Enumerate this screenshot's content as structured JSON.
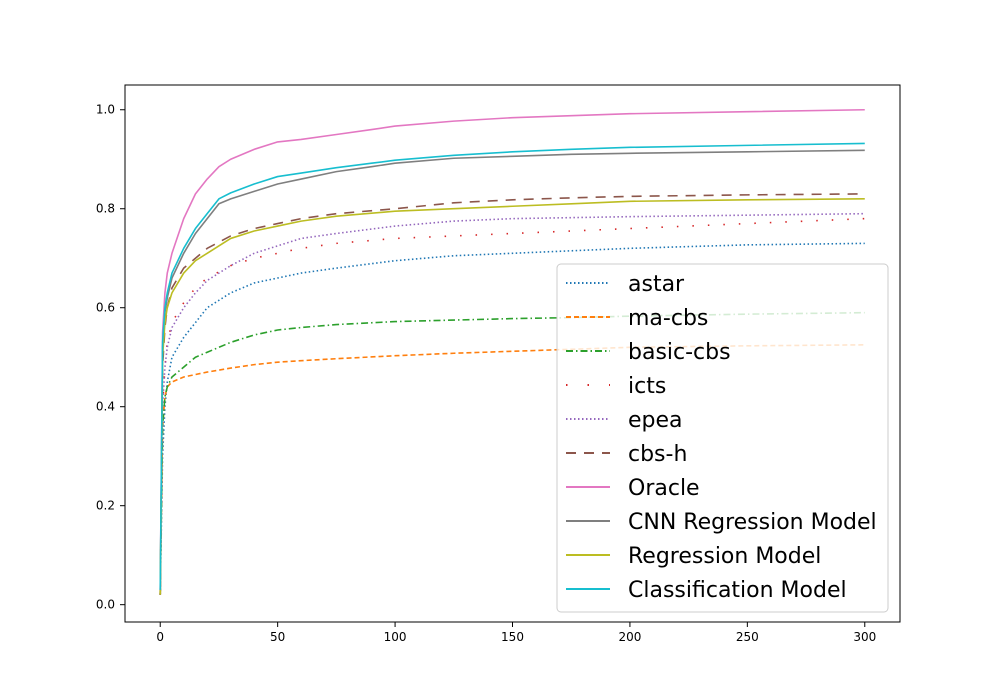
{
  "chart_data": {
    "type": "line",
    "title": "",
    "xlabel": "",
    "ylabel": "",
    "xlim": [
      -15,
      315
    ],
    "ylim": [
      -0.035,
      1.05
    ],
    "x_ticks": [
      0,
      50,
      100,
      150,
      200,
      250,
      300
    ],
    "y_ticks": [
      0.0,
      0.2,
      0.4,
      0.6,
      0.8,
      1.0
    ],
    "x_tick_labels": [
      "0",
      "50",
      "100",
      "150",
      "200",
      "250",
      "300"
    ],
    "y_tick_labels": [
      "0.0",
      "0.2",
      "0.4",
      "0.6",
      "0.8",
      "1.0"
    ],
    "grid": false,
    "legend_position": "lower-right",
    "series": [
      {
        "name": "astar",
        "color": "#1f77b4",
        "style": "dotted",
        "x": [
          0,
          1,
          2,
          3,
          5,
          10,
          15,
          20,
          30,
          40,
          50,
          60,
          75,
          100,
          125,
          150,
          175,
          200,
          250,
          300
        ],
        "y": [
          0.02,
          0.3,
          0.4,
          0.45,
          0.5,
          0.54,
          0.57,
          0.6,
          0.63,
          0.65,
          0.66,
          0.67,
          0.68,
          0.695,
          0.705,
          0.71,
          0.715,
          0.72,
          0.727,
          0.73
        ]
      },
      {
        "name": "ma-cbs",
        "color": "#ff7f0e",
        "style": "dashed",
        "x": [
          0,
          1,
          2,
          3,
          5,
          10,
          15,
          20,
          30,
          40,
          50,
          60,
          75,
          100,
          125,
          150,
          175,
          200,
          250,
          300
        ],
        "y": [
          0.02,
          0.36,
          0.42,
          0.44,
          0.45,
          0.46,
          0.465,
          0.47,
          0.478,
          0.485,
          0.49,
          0.493,
          0.497,
          0.503,
          0.508,
          0.512,
          0.516,
          0.52,
          0.523,
          0.525
        ]
      },
      {
        "name": "basic-cbs",
        "color": "#2ca02c",
        "style": "dashdot",
        "x": [
          0,
          1,
          2,
          3,
          5,
          10,
          15,
          20,
          30,
          40,
          50,
          60,
          75,
          100,
          125,
          150,
          175,
          200,
          250,
          300
        ],
        "y": [
          0.02,
          0.36,
          0.42,
          0.44,
          0.46,
          0.48,
          0.5,
          0.51,
          0.53,
          0.545,
          0.555,
          0.56,
          0.566,
          0.572,
          0.575,
          0.578,
          0.58,
          0.583,
          0.587,
          0.59
        ]
      },
      {
        "name": "icts",
        "color": "#d62728",
        "style": "sparse-dotted",
        "x": [
          0,
          1,
          2,
          3,
          5,
          10,
          15,
          20,
          30,
          40,
          50,
          60,
          75,
          100,
          125,
          150,
          175,
          200,
          250,
          300
        ],
        "y": [
          0.02,
          0.4,
          0.48,
          0.53,
          0.57,
          0.61,
          0.64,
          0.66,
          0.685,
          0.7,
          0.71,
          0.72,
          0.73,
          0.74,
          0.745,
          0.75,
          0.755,
          0.76,
          0.77,
          0.78
        ]
      },
      {
        "name": "epea",
        "color": "#9467bd",
        "style": "dotted",
        "x": [
          0,
          1,
          2,
          3,
          5,
          10,
          15,
          20,
          30,
          40,
          50,
          60,
          75,
          100,
          125,
          150,
          175,
          200,
          250,
          300
        ],
        "y": [
          0.02,
          0.4,
          0.48,
          0.52,
          0.56,
          0.6,
          0.63,
          0.655,
          0.685,
          0.71,
          0.725,
          0.74,
          0.75,
          0.765,
          0.775,
          0.78,
          0.782,
          0.784,
          0.787,
          0.79
        ]
      },
      {
        "name": "cbs-h",
        "color": "#8c564b",
        "style": "longdash",
        "x": [
          0,
          1,
          2,
          3,
          5,
          10,
          15,
          20,
          30,
          40,
          50,
          60,
          75,
          100,
          125,
          150,
          175,
          200,
          250,
          300
        ],
        "y": [
          0.02,
          0.48,
          0.56,
          0.6,
          0.64,
          0.68,
          0.7,
          0.72,
          0.745,
          0.76,
          0.77,
          0.78,
          0.79,
          0.8,
          0.812,
          0.818,
          0.822,
          0.825,
          0.828,
          0.83
        ]
      },
      {
        "name": "Oracle",
        "color": "#e377c2",
        "style": "solid",
        "x": [
          0,
          1,
          2,
          3,
          5,
          10,
          15,
          20,
          25,
          30,
          40,
          50,
          60,
          75,
          90,
          100,
          125,
          150,
          175,
          200,
          250,
          300
        ],
        "y": [
          0.03,
          0.55,
          0.63,
          0.67,
          0.71,
          0.78,
          0.83,
          0.86,
          0.885,
          0.9,
          0.92,
          0.935,
          0.94,
          0.95,
          0.96,
          0.967,
          0.977,
          0.984,
          0.988,
          0.992,
          0.996,
          1.0
        ]
      },
      {
        "name": "CNN Regression Model",
        "color": "#7f7f7f",
        "style": "solid",
        "x": [
          0,
          1,
          2,
          3,
          5,
          10,
          15,
          20,
          25,
          30,
          40,
          50,
          60,
          75,
          90,
          100,
          125,
          150,
          175,
          200,
          250,
          300
        ],
        "y": [
          0.02,
          0.52,
          0.59,
          0.62,
          0.66,
          0.71,
          0.75,
          0.78,
          0.81,
          0.82,
          0.835,
          0.85,
          0.86,
          0.875,
          0.885,
          0.892,
          0.902,
          0.906,
          0.91,
          0.912,
          0.915,
          0.918
        ]
      },
      {
        "name": "Regression Model",
        "color": "#bcbd22",
        "style": "solid",
        "x": [
          0,
          1,
          2,
          3,
          5,
          10,
          15,
          20,
          30,
          40,
          50,
          60,
          75,
          100,
          125,
          150,
          175,
          200,
          250,
          300
        ],
        "y": [
          0.02,
          0.5,
          0.57,
          0.6,
          0.63,
          0.67,
          0.695,
          0.71,
          0.74,
          0.755,
          0.765,
          0.775,
          0.785,
          0.795,
          0.8,
          0.805,
          0.81,
          0.815,
          0.818,
          0.82
        ]
      },
      {
        "name": "Classification Model",
        "color": "#17becf",
        "style": "solid",
        "x": [
          0,
          1,
          2,
          3,
          5,
          10,
          15,
          20,
          25,
          30,
          40,
          50,
          60,
          75,
          90,
          100,
          125,
          150,
          175,
          200,
          250,
          300
        ],
        "y": [
          0.03,
          0.53,
          0.6,
          0.63,
          0.67,
          0.72,
          0.76,
          0.79,
          0.82,
          0.832,
          0.85,
          0.865,
          0.872,
          0.883,
          0.892,
          0.898,
          0.908,
          0.915,
          0.92,
          0.924,
          0.928,
          0.932
        ]
      }
    ]
  }
}
